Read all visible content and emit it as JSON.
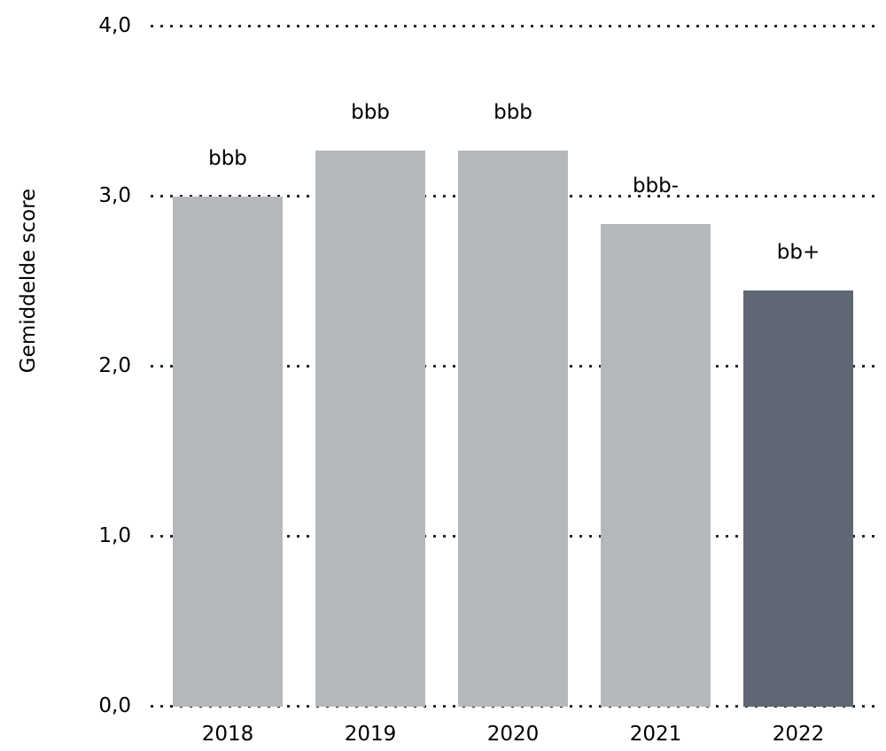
{
  "chart_data": {
    "type": "bar",
    "title": "",
    "ylabel": "Gemiddelde score",
    "xlabel": "",
    "categories": [
      "2018",
      "2019",
      "2020",
      "2021",
      "2022"
    ],
    "values": [
      3.0,
      3.27,
      3.27,
      2.84,
      2.45
    ],
    "bar_labels": [
      "bbb",
      "bbb",
      "bbb",
      "bbb-",
      "bb+"
    ],
    "ytick_values": [
      0,
      1,
      2,
      3,
      4
    ],
    "ytick_labels": [
      "0,0",
      "1,0",
      "2,0",
      "3,0",
      "4,0"
    ],
    "ylim": [
      0,
      4
    ],
    "grid": "horizontal-dotted",
    "legend": "none",
    "bar_colors": [
      "#b5b8bb",
      "#b5b8bb",
      "#b5b8bb",
      "#b5b8bb",
      "#5e6773"
    ],
    "colors": {
      "grid_dot": "#232734",
      "text": "#000000",
      "background": "#ffffff"
    }
  }
}
